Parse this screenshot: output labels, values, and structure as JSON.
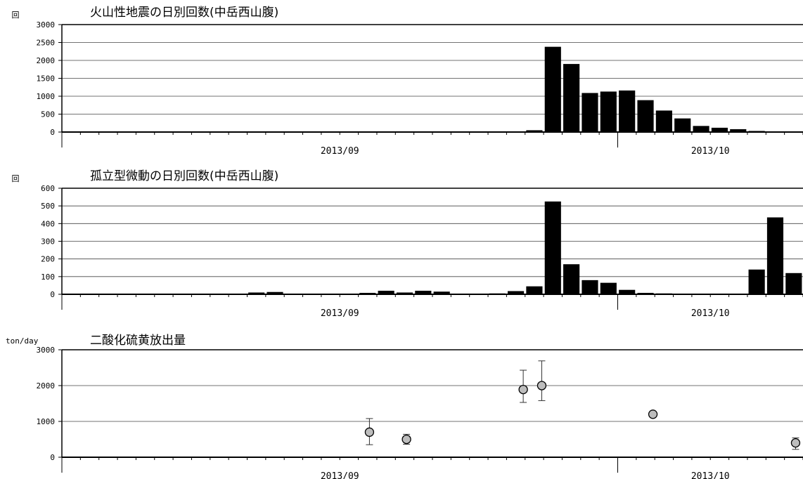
{
  "chart_data": [
    {
      "type": "bar",
      "title": "火山性地震の日別回数(中岳西山腹)",
      "ylabel": "回",
      "ylim": [
        0,
        3000
      ],
      "yticks": [
        0,
        500,
        1000,
        1500,
        2000,
        2500,
        3000
      ],
      "date_labels": [
        "2013/09",
        "2013/10"
      ],
      "grid": true,
      "values": [
        0,
        0,
        0,
        0,
        0,
        0,
        0,
        0,
        0,
        0,
        0,
        0,
        0,
        0,
        0,
        0,
        0,
        0,
        0,
        5,
        0,
        10,
        0,
        0,
        0,
        50,
        2380,
        1900,
        1090,
        1130,
        1160,
        890,
        600,
        380,
        170,
        120,
        80,
        30,
        0,
        0,
        0,
        0
      ]
    },
    {
      "type": "bar",
      "title": "孤立型微動の日別回数(中岳西山腹)",
      "ylabel": "回",
      "ylim": [
        0,
        600
      ],
      "yticks": [
        0,
        100,
        200,
        300,
        400,
        500,
        600
      ],
      "date_labels": [
        "2013/09",
        "2013/10"
      ],
      "grid": true,
      "values": [
        2,
        2,
        2,
        2,
        2,
        2,
        2,
        2,
        3,
        3,
        10,
        13,
        2,
        2,
        2,
        2,
        8,
        20,
        10,
        20,
        15,
        2,
        2,
        5,
        18,
        45,
        525,
        170,
        80,
        65,
        25,
        8,
        5,
        2,
        2,
        2,
        2,
        140,
        435,
        120,
        15,
        2
      ]
    },
    {
      "type": "scatter",
      "title": "二酸化硫黄放出量",
      "ylabel": "ton/day",
      "ylim": [
        0,
        3000
      ],
      "yticks": [
        0,
        1000,
        2000,
        3000
      ],
      "date_labels": [
        "2013/09",
        "2013/10"
      ],
      "grid": true,
      "points": [
        {
          "day": 16.6,
          "value": 700,
          "low": 350,
          "high": 1080
        },
        {
          "day": 18.6,
          "value": 500,
          "low": 360,
          "high": 640
        },
        {
          "day": 24.9,
          "value": 1890,
          "low": 1530,
          "high": 2430
        },
        {
          "day": 25.9,
          "value": 2000,
          "low": 1580,
          "high": 2690
        },
        {
          "day": 31.9,
          "value": 1200,
          "low": 1200,
          "high": 1200
        },
        {
          "day": 39.6,
          "value": 400,
          "low": 220,
          "high": 540
        }
      ]
    }
  ]
}
